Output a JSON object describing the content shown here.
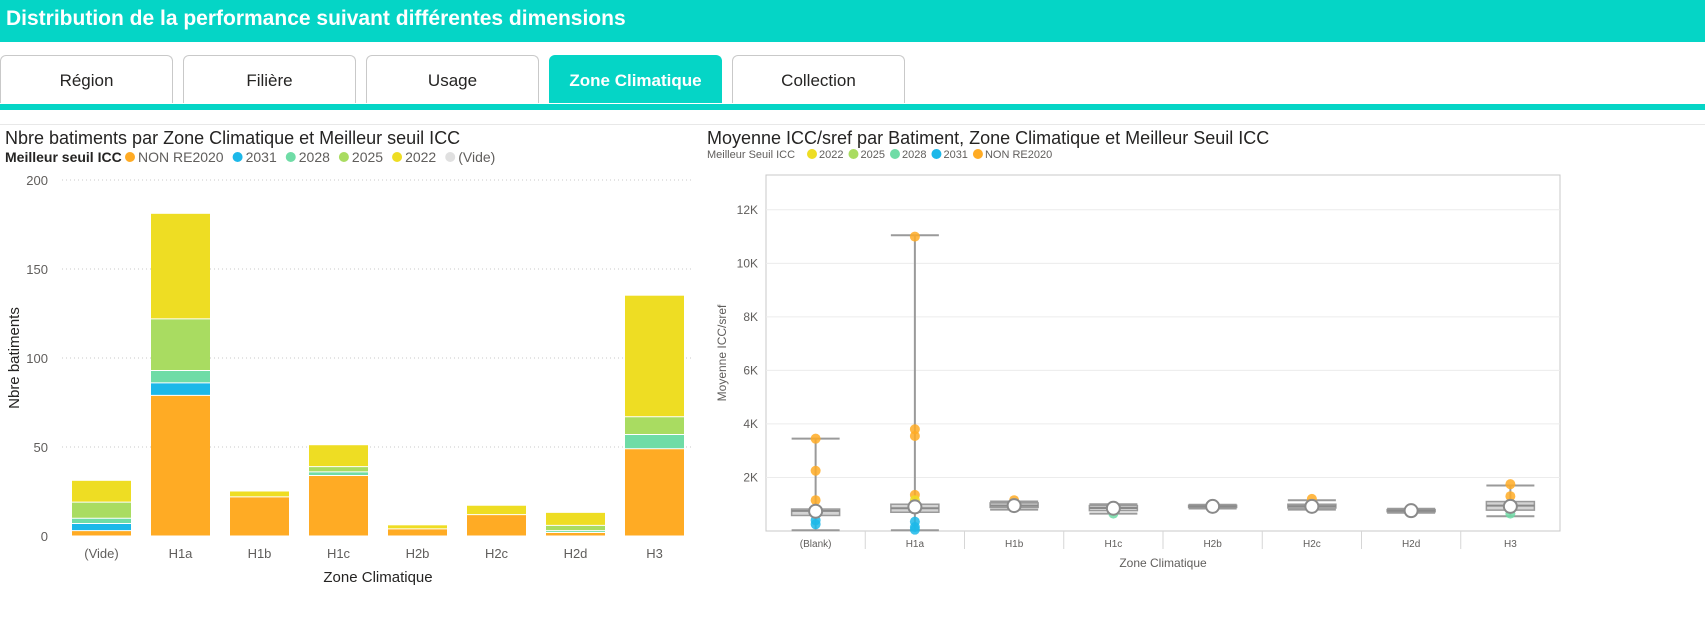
{
  "header": {
    "title": "Distribution de la performance suivant différentes dimensions"
  },
  "tabs": [
    {
      "label": "Région",
      "active": false
    },
    {
      "label": "Filière",
      "active": false
    },
    {
      "label": "Usage",
      "active": false
    },
    {
      "label": "Zone Climatique",
      "active": true
    },
    {
      "label": "Collection",
      "active": false
    }
  ],
  "colors": {
    "accent": "#05d5c6",
    "NON RE2020": "#ffab24",
    "2031": "#1cb8e9",
    "2028": "#6fdca6",
    "2025": "#a9dc61",
    "2022": "#eedd23",
    "(Vide)": "#e0e0e0"
  },
  "chart_data": [
    {
      "type": "bar",
      "stacked": true,
      "title": "Nbre batiments par Zone Climatique et Meilleur seuil ICC",
      "legend_title": "Meilleur seuil ICC",
      "legend_placement": "top-left",
      "xlabel": "Zone Climatique",
      "ylabel": "Nbre batiments",
      "ylim": [
        0,
        200
      ],
      "yticks": [
        "0",
        "50",
        "100",
        "150",
        "200"
      ],
      "grid": true,
      "categories": [
        "(Vide)",
        "H1a",
        "H1b",
        "H1c",
        "H2b",
        "H2c",
        "H2d",
        "H3"
      ],
      "series": [
        {
          "name": "NON RE2020",
          "values": [
            3,
            79,
            22,
            34,
            4,
            12,
            2,
            49
          ]
        },
        {
          "name": "2031",
          "values": [
            4,
            7,
            0,
            0,
            0,
            0,
            0,
            0
          ]
        },
        {
          "name": "2028",
          "values": [
            3,
            7,
            0,
            2,
            0,
            0,
            1,
            8
          ]
        },
        {
          "name": "2025",
          "values": [
            9,
            29,
            0,
            3,
            0,
            0,
            3,
            10
          ]
        },
        {
          "name": "2022",
          "values": [
            12,
            59,
            3,
            12,
            2,
            5,
            7,
            68
          ]
        },
        {
          "name": "(Vide)",
          "values": [
            0,
            0,
            0,
            0,
            0,
            0,
            0,
            0
          ]
        }
      ]
    },
    {
      "type": "scatter",
      "subtype": "box-plot",
      "title": "Moyenne ICC/sref par Batiment, Zone Climatique et Meilleur Seuil ICC",
      "legend_title": "Meilleur Seuil ICC",
      "legend_placement": "top-left",
      "legend": [
        "2022",
        "2025",
        "2028",
        "2031",
        "NON RE2020"
      ],
      "xlabel": "Zone Climatique",
      "ylabel": "Moyenne ICC/sref",
      "ylim": [
        0,
        13300
      ],
      "yticks": [
        "2K",
        "4K",
        "6K",
        "8K",
        "10K",
        "12K"
      ],
      "grid": true,
      "categories": [
        "(Blank)",
        "H1a",
        "H1b",
        "H1c",
        "H2b",
        "H2c",
        "H2d",
        "H3"
      ],
      "boxes": [
        {
          "min": 30,
          "q1": 580,
          "median": 750,
          "q3": 820,
          "max": 3450,
          "mean": 740
        },
        {
          "min": 30,
          "q1": 700,
          "median": 850,
          "q3": 1000,
          "max": 11050,
          "mean": 900
        },
        {
          "min": 800,
          "q1": 880,
          "median": 950,
          "q3": 1050,
          "max": 1100,
          "mean": 950
        },
        {
          "min": 650,
          "q1": 760,
          "median": 860,
          "q3": 950,
          "max": 1000,
          "mean": 850
        },
        {
          "min": 840,
          "q1": 880,
          "median": 920,
          "q3": 960,
          "max": 980,
          "mean": 920
        },
        {
          "min": 800,
          "q1": 860,
          "median": 930,
          "q3": 1000,
          "max": 1150,
          "mean": 920
        },
        {
          "min": 680,
          "q1": 720,
          "median": 760,
          "q3": 800,
          "max": 830,
          "mean": 760
        },
        {
          "min": 550,
          "q1": 780,
          "median": 950,
          "q3": 1100,
          "max": 1700,
          "mean": 920
        }
      ],
      "points": [
        {
          "cat": "(Blank)",
          "y": 3450,
          "series": "NON RE2020"
        },
        {
          "cat": "(Blank)",
          "y": 2250,
          "series": "NON RE2020"
        },
        {
          "cat": "(Blank)",
          "y": 1150,
          "series": "NON RE2020"
        },
        {
          "cat": "(Blank)",
          "y": 650,
          "series": "2025"
        },
        {
          "cat": "(Blank)",
          "y": 400,
          "series": "2031"
        },
        {
          "cat": "(Blank)",
          "y": 250,
          "series": "2031"
        },
        {
          "cat": "H1a",
          "y": 11000,
          "series": "NON RE2020"
        },
        {
          "cat": "H1a",
          "y": 3800,
          "series": "NON RE2020"
        },
        {
          "cat": "H1a",
          "y": 3550,
          "series": "NON RE2020"
        },
        {
          "cat": "H1a",
          "y": 1350,
          "series": "NON RE2020"
        },
        {
          "cat": "H1a",
          "y": 1150,
          "series": "2022"
        },
        {
          "cat": "H1a",
          "y": 350,
          "series": "2031"
        },
        {
          "cat": "H1a",
          "y": 150,
          "series": "2031"
        },
        {
          "cat": "H1a",
          "y": 50,
          "series": "2031"
        },
        {
          "cat": "H1b",
          "y": 1150,
          "series": "NON RE2020"
        },
        {
          "cat": "H1c",
          "y": 650,
          "series": "2028"
        },
        {
          "cat": "H2c",
          "y": 1200,
          "series": "NON RE2020"
        },
        {
          "cat": "H3",
          "y": 1750,
          "series": "NON RE2020"
        },
        {
          "cat": "H3",
          "y": 1300,
          "series": "NON RE2020"
        },
        {
          "cat": "H3",
          "y": 650,
          "series": "2028"
        }
      ]
    }
  ]
}
